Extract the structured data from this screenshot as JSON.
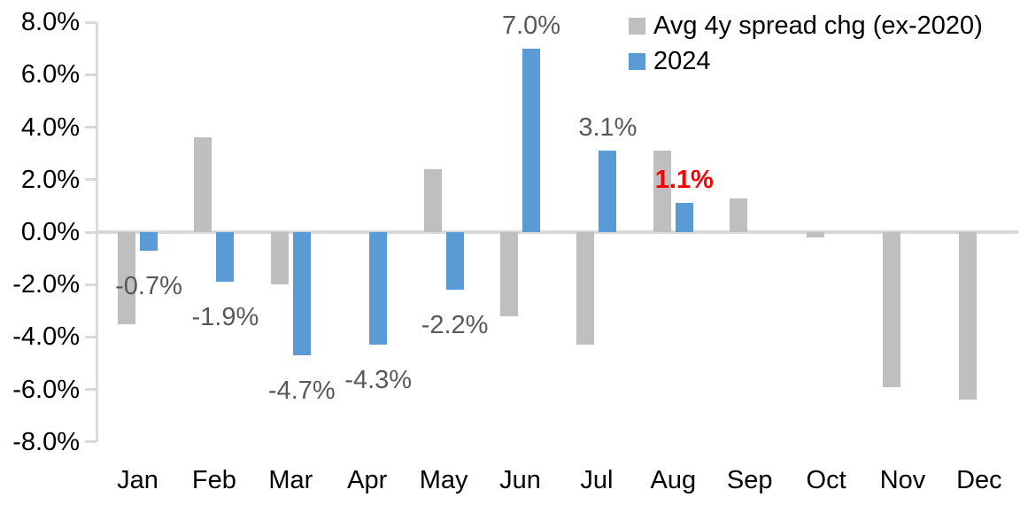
{
  "chart_data": {
    "type": "bar",
    "title": "",
    "categories": [
      "Jan",
      "Feb",
      "Mar",
      "Apr",
      "May",
      "Jun",
      "Jul",
      "Aug",
      "Sep",
      "Oct",
      "Nov",
      "Dec"
    ],
    "series": [
      {
        "name": "Avg 4y spread chg (ex-2020)",
        "color": "#BFBFBF",
        "values": [
          -3.5,
          3.6,
          -2.0,
          0.0,
          2.4,
          -3.2,
          -4.3,
          3.1,
          1.3,
          -0.2,
          -5.9,
          -6.4
        ]
      },
      {
        "name": "2024",
        "color": "#5B9BD5",
        "values": [
          -0.7,
          -1.9,
          -4.7,
          -4.3,
          -2.2,
          7.0,
          3.1,
          1.1,
          null,
          null,
          null,
          null
        ]
      }
    ],
    "data_labels": [
      {
        "month": "Jan",
        "text": "-0.7%",
        "color": "#595959",
        "bold": false
      },
      {
        "month": "Feb",
        "text": "-1.9%",
        "color": "#595959",
        "bold": false
      },
      {
        "month": "Mar",
        "text": "-4.7%",
        "color": "#595959",
        "bold": false
      },
      {
        "month": "Apr",
        "text": "-4.3%",
        "color": "#595959",
        "bold": false
      },
      {
        "month": "May",
        "text": "-2.2%",
        "color": "#595959",
        "bold": false
      },
      {
        "month": "Jun",
        "text": "7.0%",
        "color": "#595959",
        "bold": false
      },
      {
        "month": "Jul",
        "text": "3.1%",
        "color": "#595959",
        "bold": false
      },
      {
        "month": "Aug",
        "text": "1.1%",
        "color": "#FF0000",
        "bold": true
      }
    ],
    "y_axis": {
      "tick_labels": [
        "8.0%",
        "6.0%",
        "4.0%",
        "2.0%",
        "0.0%",
        "-2.0%",
        "-4.0%",
        "-6.0%",
        "-8.0%"
      ],
      "tick_values": [
        8,
        6,
        4,
        2,
        0,
        -2,
        -4,
        -6,
        -8
      ],
      "min": -8,
      "max": 8
    },
    "xlabel": "",
    "ylabel": "",
    "legend_position": "top-right",
    "grid": "zero-line-only",
    "colors": {
      "axis_line": "#D9D9D9",
      "axis_text": "#000000",
      "label_text": "#595959",
      "highlight_text": "#FF0000"
    }
  }
}
